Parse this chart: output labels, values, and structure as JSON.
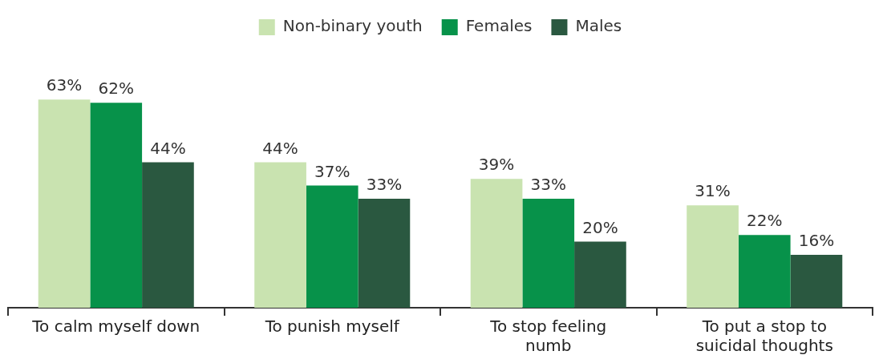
{
  "chart_data": {
    "type": "bar",
    "categories": [
      "To calm myself down",
      "To punish myself",
      "To stop feeling numb",
      "To put a stop to suicidal thoughts"
    ],
    "series": [
      {
        "name": "Non-binary youth",
        "color": "#c9e3b0",
        "values": [
          63,
          44,
          39,
          31
        ],
        "value_labels": [
          "63%",
          "44%",
          "39%",
          "31%"
        ]
      },
      {
        "name": "Females",
        "color": "#07924a",
        "values": [
          62,
          37,
          33,
          22
        ],
        "value_labels": [
          "62%",
          "37%",
          "33%",
          "22%"
        ]
      },
      {
        "name": "Males",
        "color": "#2a5840",
        "values": [
          44,
          33,
          20,
          16
        ],
        "value_labels": [
          "44%",
          "33%",
          "20%",
          "16%"
        ]
      }
    ],
    "legend": "top",
    "grid": false
  }
}
